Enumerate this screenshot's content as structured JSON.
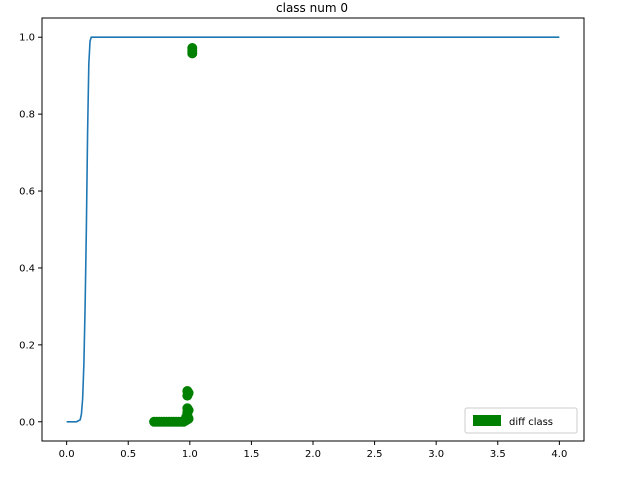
{
  "chart_data": {
    "type": "line",
    "title": "class num 0",
    "xlabel": "",
    "ylabel": "",
    "xlim": [
      -0.2,
      4.2
    ],
    "ylim": [
      -0.05,
      1.05
    ],
    "x_ticks": [
      0.0,
      0.5,
      1.0,
      1.5,
      2.0,
      2.5,
      3.0,
      3.5,
      4.0
    ],
    "x_tick_labels": [
      "0.0",
      "0.5",
      "1.0",
      "1.5",
      "2.0",
      "2.5",
      "3.0",
      "3.5",
      "4.0"
    ],
    "y_ticks": [
      0.0,
      0.2,
      0.4,
      0.6,
      0.8,
      1.0
    ],
    "y_tick_labels": [
      "0.0",
      "0.2",
      "0.4",
      "0.6",
      "0.8",
      "1.0"
    ],
    "grid": false,
    "legend_position": "lower-right",
    "series": [
      {
        "kind": "line",
        "color": "#1f77b4",
        "points": [
          [
            0.0,
            0.0
          ],
          [
            0.08,
            0.0
          ],
          [
            0.11,
            0.005
          ],
          [
            0.12,
            0.02
          ],
          [
            0.13,
            0.06
          ],
          [
            0.14,
            0.15
          ],
          [
            0.15,
            0.3
          ],
          [
            0.16,
            0.5
          ],
          [
            0.17,
            0.75
          ],
          [
            0.18,
            0.93
          ],
          [
            0.19,
            0.99
          ],
          [
            0.2,
            1.0
          ],
          [
            4.0,
            1.0
          ]
        ]
      },
      {
        "kind": "scatter",
        "name": "diff class",
        "color": "#008000",
        "points": [
          [
            0.71,
            0.0
          ],
          [
            0.73,
            0.0
          ],
          [
            0.75,
            0.0
          ],
          [
            0.77,
            0.0
          ],
          [
            0.79,
            0.0
          ],
          [
            0.81,
            0.0
          ],
          [
            0.83,
            0.0
          ],
          [
            0.85,
            0.0
          ],
          [
            0.87,
            0.0
          ],
          [
            0.89,
            0.0
          ],
          [
            0.91,
            0.0
          ],
          [
            0.93,
            0.0
          ],
          [
            0.95,
            0.0
          ],
          [
            0.96,
            0.002
          ],
          [
            0.97,
            0.004
          ],
          [
            0.98,
            0.006
          ],
          [
            0.99,
            0.008
          ],
          [
            0.97,
            0.012
          ],
          [
            0.98,
            0.018
          ],
          [
            0.98,
            0.025
          ],
          [
            0.99,
            0.03
          ],
          [
            0.98,
            0.035
          ],
          [
            0.98,
            0.068
          ],
          [
            0.99,
            0.075
          ],
          [
            0.98,
            0.08
          ],
          [
            1.02,
            0.958
          ],
          [
            1.02,
            0.965
          ],
          [
            1.02,
            0.972
          ]
        ]
      }
    ]
  }
}
